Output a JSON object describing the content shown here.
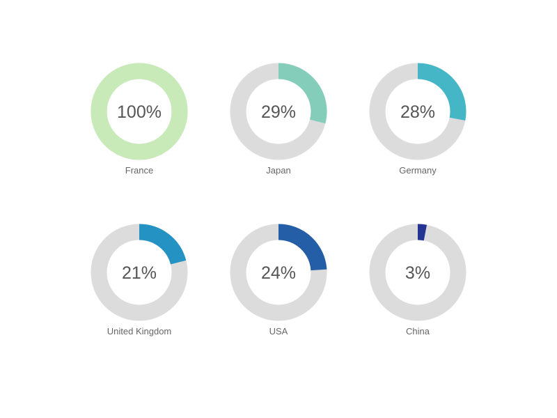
{
  "chart_data": {
    "type": "donut",
    "track_color": "#dcdcdc",
    "items": [
      {
        "label": "France",
        "value": 100,
        "value_label": "100%",
        "color": "#c8e9b8"
      },
      {
        "label": "Japan",
        "value": 29,
        "value_label": "29%",
        "color": "#84cdbb"
      },
      {
        "label": "Germany",
        "value": 28,
        "value_label": "28%",
        "color": "#45b6c6"
      },
      {
        "label": "United Kingdom",
        "value": 21,
        "value_label": "21%",
        "color": "#2492c2"
      },
      {
        "label": "USA",
        "value": 24,
        "value_label": "24%",
        "color": "#235ea6"
      },
      {
        "label": "China",
        "value": 3,
        "value_label": "3%",
        "color": "#253493"
      }
    ]
  }
}
